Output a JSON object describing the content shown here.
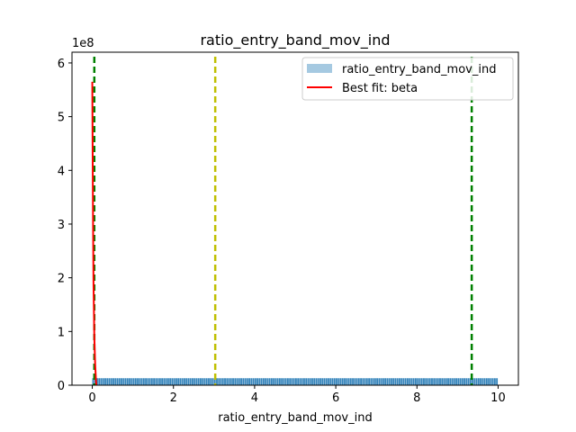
{
  "chart_data": {
    "type": "bar",
    "title": "ratio_entry_band_mov_ind",
    "xlabel": "ratio_entry_band_mov_ind",
    "ylabel": "",
    "y_scale_label": "1e8",
    "xlim": [
      -0.5,
      10.5
    ],
    "ylim": [
      0,
      6.2
    ],
    "x_ticks": [
      0,
      2,
      4,
      6,
      8,
      10
    ],
    "x_tick_labels": [
      "0",
      "2",
      "4",
      "6",
      "8",
      "10"
    ],
    "y_ticks": [
      0,
      1,
      2,
      3,
      4,
      5,
      6
    ],
    "y_tick_labels": [
      "0",
      "1",
      "2",
      "3",
      "4",
      "5",
      "6"
    ],
    "grid": false,
    "legend_position": "top-right",
    "series": [
      {
        "name": "ratio_entry_band_mov_ind",
        "kind": "histogram",
        "color": "#1f77b4",
        "x_range": [
          0,
          10
        ],
        "bin_height": 0.13
      },
      {
        "name": "Best fit: beta",
        "kind": "line",
        "color": "#ff0000",
        "x": [
          0.0,
          0.01,
          0.02,
          0.03,
          0.05,
          0.07,
          0.09,
          0.1
        ],
        "y": [
          5.65,
          4.2,
          2.9,
          1.9,
          0.9,
          0.4,
          0.1,
          0.0
        ]
      }
    ],
    "vlines": [
      {
        "x": 0.05,
        "color": "#008000",
        "style": "dashed"
      },
      {
        "x": 3.03,
        "color": "#bfbf00",
        "style": "dashed"
      },
      {
        "x": 9.35,
        "color": "#008000",
        "style": "dashed"
      }
    ]
  }
}
